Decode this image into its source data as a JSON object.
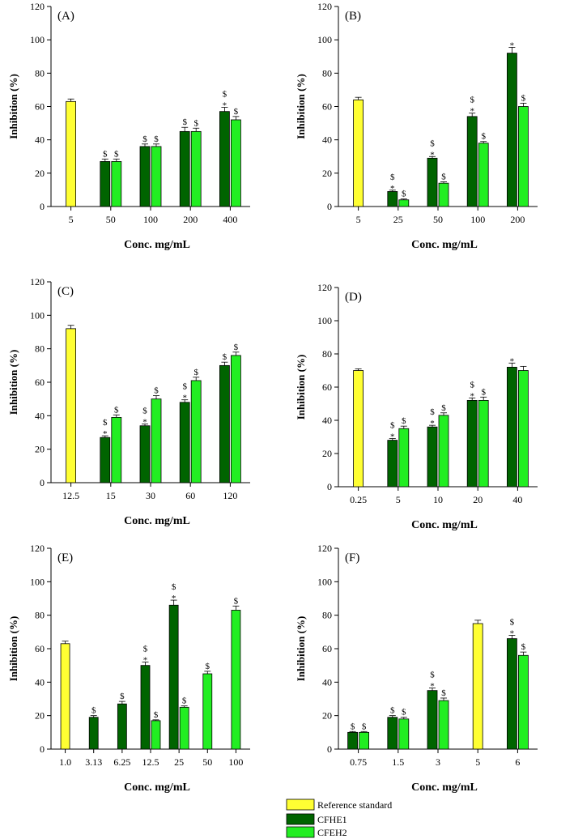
{
  "colors": {
    "reference": "#ffff33",
    "cfhe1": "#006400",
    "cfhe2": "#22ee22",
    "axis": "#000000"
  },
  "legend": {
    "items": [
      {
        "key": "reference",
        "label": "Reference standard"
      },
      {
        "key": "cfhe1",
        "label": "CFHE1"
      },
      {
        "key": "cfhe2",
        "label": "CFEH2"
      }
    ]
  },
  "chart_data": [
    {
      "type": "bar",
      "panel": "(A)",
      "ylabel": "Inhibition (%)",
      "xlabel": "Conc. mg/mL",
      "ylim": [
        0,
        120
      ],
      "yticks": [
        "0",
        "20",
        "40",
        "60",
        "80",
        "100",
        "120"
      ],
      "categories": [
        "5",
        "50",
        "100",
        "200",
        "400"
      ],
      "bars": [
        {
          "cat": 0,
          "series": "reference",
          "value": 63,
          "err": 1.5,
          "ann": []
        },
        {
          "cat": 1,
          "series": "cfhe1",
          "value": 27,
          "err": 1.5,
          "ann": [
            "$"
          ]
        },
        {
          "cat": 1,
          "series": "cfhe2",
          "value": 27,
          "err": 1.5,
          "ann": [
            "$"
          ]
        },
        {
          "cat": 2,
          "series": "cfhe1",
          "value": 36,
          "err": 1.5,
          "ann": [
            "$"
          ]
        },
        {
          "cat": 2,
          "series": "cfhe2",
          "value": 36,
          "err": 1.5,
          "ann": [
            "$"
          ]
        },
        {
          "cat": 3,
          "series": "cfhe1",
          "value": 45,
          "err": 2.5,
          "ann": [
            "$"
          ]
        },
        {
          "cat": 3,
          "series": "cfhe2",
          "value": 45,
          "err": 2,
          "ann": [
            "$"
          ]
        },
        {
          "cat": 4,
          "series": "cfhe1",
          "value": 57,
          "err": 2.5,
          "ann": [
            "$",
            "*"
          ]
        },
        {
          "cat": 4,
          "series": "cfhe2",
          "value": 52,
          "err": 2,
          "ann": [
            "$"
          ]
        }
      ]
    },
    {
      "type": "bar",
      "panel": "(B)",
      "ylabel": "Inhibition (%)",
      "xlabel": "Conc. mg/mL",
      "ylim": [
        0,
        120
      ],
      "yticks": [
        "0",
        "20",
        "40",
        "60",
        "80",
        "100",
        "120"
      ],
      "categories": [
        "5",
        "25",
        "50",
        "100",
        "200"
      ],
      "bars": [
        {
          "cat": 0,
          "series": "reference",
          "value": 64,
          "err": 1.5,
          "ann": []
        },
        {
          "cat": 1,
          "series": "cfhe1",
          "value": 9,
          "err": 0.8,
          "ann": [
            "$",
            "*"
          ]
        },
        {
          "cat": 1,
          "series": "cfhe2",
          "value": 4,
          "err": 0.5,
          "ann": [
            "$"
          ]
        },
        {
          "cat": 2,
          "series": "cfhe1",
          "value": 29,
          "err": 1,
          "ann": [
            "$",
            "*"
          ]
        },
        {
          "cat": 2,
          "series": "cfhe2",
          "value": 14,
          "err": 0.8,
          "ann": [
            "$"
          ]
        },
        {
          "cat": 3,
          "series": "cfhe1",
          "value": 54,
          "err": 2,
          "ann": [
            "$",
            "*"
          ]
        },
        {
          "cat": 3,
          "series": "cfhe2",
          "value": 38,
          "err": 1,
          "ann": [
            "$"
          ]
        },
        {
          "cat": 4,
          "series": "cfhe1",
          "value": 92,
          "err": 3.5,
          "ann": [
            "*"
          ]
        },
        {
          "cat": 4,
          "series": "cfhe2",
          "value": 60,
          "err": 2,
          "ann": [
            "$"
          ]
        }
      ]
    },
    {
      "type": "bar",
      "panel": "(C)",
      "ylabel": "Inhibition (%)",
      "xlabel": "Conc. mg/mL",
      "ylim": [
        0,
        120
      ],
      "yticks": [
        "0",
        "20",
        "40",
        "60",
        "80",
        "100",
        "120"
      ],
      "categories": [
        "12.5",
        "15",
        "30",
        "60",
        "120"
      ],
      "bars": [
        {
          "cat": 0,
          "series": "reference",
          "value": 92,
          "err": 2,
          "ann": []
        },
        {
          "cat": 1,
          "series": "cfhe1",
          "value": 27,
          "err": 1,
          "ann": [
            "$",
            "*"
          ]
        },
        {
          "cat": 1,
          "series": "cfhe2",
          "value": 39,
          "err": 1.5,
          "ann": [
            "$"
          ]
        },
        {
          "cat": 2,
          "series": "cfhe1",
          "value": 34,
          "err": 1,
          "ann": [
            "$",
            "*"
          ]
        },
        {
          "cat": 2,
          "series": "cfhe2",
          "value": 50,
          "err": 2,
          "ann": [
            "$"
          ]
        },
        {
          "cat": 3,
          "series": "cfhe1",
          "value": 48,
          "err": 1.5,
          "ann": [
            "$",
            "*"
          ]
        },
        {
          "cat": 3,
          "series": "cfhe2",
          "value": 61,
          "err": 2,
          "ann": [
            "$"
          ]
        },
        {
          "cat": 4,
          "series": "cfhe1",
          "value": 70,
          "err": 2,
          "ann": [
            "$"
          ]
        },
        {
          "cat": 4,
          "series": "cfhe2",
          "value": 76,
          "err": 2,
          "ann": [
            "$"
          ]
        }
      ]
    },
    {
      "type": "bar",
      "panel": "(D)",
      "ylabel": "Inhibition (%)",
      "xlabel": "Conc. mg/mL",
      "ylim": [
        0,
        120
      ],
      "yticks": [
        "0",
        "20",
        "40",
        "60",
        "80",
        "100",
        "120"
      ],
      "categories": [
        "0.25",
        "5",
        "10",
        "20",
        "40"
      ],
      "bars": [
        {
          "cat": 0,
          "series": "reference",
          "value": 70,
          "err": 1,
          "ann": []
        },
        {
          "cat": 1,
          "series": "cfhe1",
          "value": 28,
          "err": 1,
          "ann": [
            "$",
            "*"
          ]
        },
        {
          "cat": 1,
          "series": "cfhe2",
          "value": 35,
          "err": 1.5,
          "ann": [
            "$"
          ]
        },
        {
          "cat": 2,
          "series": "cfhe1",
          "value": 36,
          "err": 1,
          "ann": [
            "$",
            "*"
          ]
        },
        {
          "cat": 2,
          "series": "cfhe2",
          "value": 43,
          "err": 1.5,
          "ann": [
            "$"
          ]
        },
        {
          "cat": 3,
          "series": "cfhe1",
          "value": 52,
          "err": 1.5,
          "ann": [
            "$",
            "*"
          ]
        },
        {
          "cat": 3,
          "series": "cfhe2",
          "value": 52,
          "err": 2,
          "ann": [
            "$"
          ]
        },
        {
          "cat": 4,
          "series": "cfhe1",
          "value": 72,
          "err": 2.5,
          "ann": [
            "*"
          ]
        },
        {
          "cat": 4,
          "series": "cfhe2",
          "value": 70,
          "err": 2.5,
          "ann": []
        }
      ]
    },
    {
      "type": "bar",
      "panel": "(E)",
      "ylabel": "Inhibition (%)",
      "xlabel": "Conc. mg/mL",
      "ylim": [
        0,
        120
      ],
      "yticks": [
        "0",
        "20",
        "40",
        "60",
        "80",
        "100",
        "120"
      ],
      "categories": [
        "1.0",
        "3.13",
        "6.25",
        "12.5",
        "25",
        "50",
        "100"
      ],
      "bars": [
        {
          "cat": 0,
          "series": "reference",
          "value": 63,
          "err": 1.5,
          "ann": []
        },
        {
          "cat": 1,
          "series": "cfhe1",
          "value": 19,
          "err": 1,
          "ann": [
            "$"
          ]
        },
        {
          "cat": 2,
          "series": "cfhe1",
          "value": 27,
          "err": 1.5,
          "ann": [
            "$"
          ]
        },
        {
          "cat": 3,
          "series": "cfhe1",
          "value": 50,
          "err": 2,
          "ann": [
            "$",
            "*"
          ]
        },
        {
          "cat": 3,
          "series": "cfhe2",
          "value": 17,
          "err": 0.5,
          "ann": [
            "$"
          ]
        },
        {
          "cat": 4,
          "series": "cfhe1",
          "value": 86,
          "err": 3,
          "ann": [
            "$",
            "*"
          ]
        },
        {
          "cat": 4,
          "series": "cfhe2",
          "value": 25,
          "err": 0.8,
          "ann": [
            "$"
          ]
        },
        {
          "cat": 5,
          "series": "cfhe2",
          "value": 45,
          "err": 1.5,
          "ann": [
            "$"
          ]
        },
        {
          "cat": 6,
          "series": "cfhe2",
          "value": 83,
          "err": 2.5,
          "ann": [
            "$"
          ]
        }
      ]
    },
    {
      "type": "bar",
      "panel": "(F)",
      "ylabel": "Inhibition (%)",
      "xlabel": "Conc. mg/mL",
      "ylim": [
        0,
        120
      ],
      "yticks": [
        "0",
        "20",
        "40",
        "60",
        "80",
        "100",
        "120"
      ],
      "categories": [
        "0.75",
        "1.5",
        "3",
        "5",
        "6"
      ],
      "bars": [
        {
          "cat": 0,
          "series": "cfhe1",
          "value": 10,
          "err": 0.5,
          "ann": [
            "$"
          ]
        },
        {
          "cat": 0,
          "series": "cfhe2",
          "value": 10,
          "err": 0.5,
          "ann": [
            "$"
          ]
        },
        {
          "cat": 1,
          "series": "cfhe1",
          "value": 19,
          "err": 1,
          "ann": [
            "$"
          ]
        },
        {
          "cat": 1,
          "series": "cfhe2",
          "value": 18,
          "err": 1,
          "ann": [
            "$"
          ]
        },
        {
          "cat": 2,
          "series": "cfhe1",
          "value": 35,
          "err": 1.5,
          "ann": [
            "$",
            "*"
          ]
        },
        {
          "cat": 2,
          "series": "cfhe2",
          "value": 29,
          "err": 1.5,
          "ann": [
            "$"
          ]
        },
        {
          "cat": 3,
          "series": "reference",
          "value": 75,
          "err": 2,
          "ann": []
        },
        {
          "cat": 4,
          "series": "cfhe1",
          "value": 66,
          "err": 2,
          "ann": [
            "$",
            "*"
          ]
        },
        {
          "cat": 4,
          "series": "cfhe2",
          "value": 56,
          "err": 2,
          "ann": [
            "$"
          ]
        }
      ]
    }
  ]
}
